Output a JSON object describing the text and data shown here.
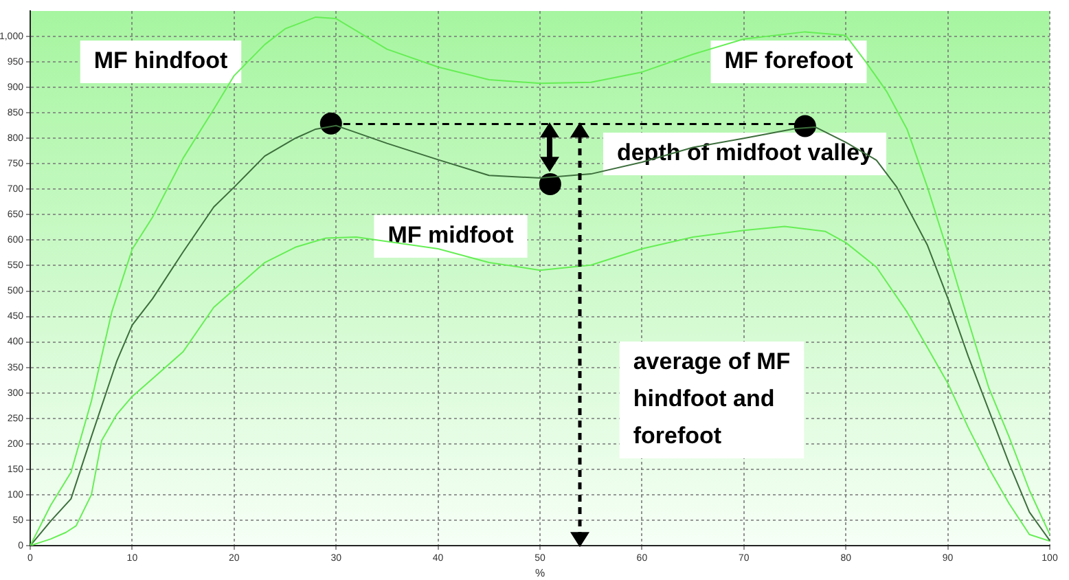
{
  "chart_data": {
    "type": "line",
    "xlabel": "%",
    "xlim": [
      0,
      100
    ],
    "ylim": [
      0,
      1050
    ],
    "xticks": [
      0,
      10,
      20,
      30,
      40,
      50,
      60,
      70,
      80,
      90,
      100
    ],
    "yticks": [
      0,
      50,
      100,
      150,
      200,
      250,
      300,
      350,
      400,
      450,
      500,
      550,
      600,
      650,
      700,
      750,
      800,
      850,
      900,
      950,
      {
        "value": 1000,
        "label": "1,000"
      }
    ],
    "grid": true,
    "legend": false,
    "marker": "none",
    "series": [
      {
        "color": "#66ee55",
        "x": [
          0,
          2,
          4,
          6,
          8,
          10,
          12,
          15,
          18,
          20,
          23,
          25,
          28,
          30,
          35,
          40,
          45,
          50,
          55,
          60,
          65,
          70,
          76,
          80,
          82,
          84,
          86,
          88,
          90,
          92,
          94,
          96,
          98,
          100
        ],
        "values": [
          0,
          79,
          144,
          284,
          459,
          582,
          645,
          761,
          857,
          923,
          984,
          1015,
          1038,
          1035,
          975,
          940,
          915,
          908,
          910,
          930,
          965,
          995,
          1009,
          1002,
          949,
          892,
          818,
          704,
          577,
          442,
          311,
          214,
          109,
          22
        ]
      },
      {
        "color": "#3c6e3c",
        "x": [
          0,
          2,
          4,
          6,
          8.5,
          10,
          12,
          15,
          18,
          20,
          23,
          26,
          28,
          30,
          35,
          40,
          45,
          50,
          55,
          60,
          65,
          70,
          75,
          77,
          80,
          83,
          85,
          88,
          90,
          92,
          94,
          96,
          98,
          100
        ],
        "values": [
          0,
          48,
          92,
          214,
          363,
          433,
          485,
          577,
          665,
          704,
          765,
          800,
          818,
          825,
          790,
          758,
          727,
          722,
          730,
          753,
          782,
          800,
          819,
          822,
          792,
          757,
          704,
          590,
          486,
          372,
          267,
          162,
          66,
          10
        ]
      },
      {
        "color": "#66ee55",
        "x": [
          0,
          2,
          3.5,
          4.5,
          6,
          7,
          8.5,
          10,
          12,
          15,
          18,
          20,
          23,
          26,
          29,
          32,
          40,
          45,
          50,
          55,
          60,
          65,
          70,
          74,
          78,
          80,
          83,
          86,
          88,
          90,
          92,
          94,
          96,
          98,
          100
        ],
        "values": [
          0,
          13,
          26,
          39,
          100,
          206,
          258,
          293,
          328,
          381,
          468,
          503,
          556,
          586,
          604,
          606,
          583,
          556,
          541,
          551,
          583,
          606,
          619,
          627,
          617,
          595,
          547,
          459,
          389,
          319,
          232,
          153,
          83,
          22,
          9
        ]
      },
      {
        "type": "line",
        "line_style": "dashed",
        "color": "#000000",
        "x": [
          29.5,
          76
        ],
        "values": [
          828,
          828
        ]
      },
      {
        "type": "scatter",
        "marker": "circle",
        "color": "#000000",
        "x": [
          29.5,
          51,
          76
        ],
        "values": [
          829,
          710,
          824
        ]
      }
    ],
    "annotations": [
      "MF hindfoot",
      "MF forefoot",
      "MF midfoot",
      "depth of midfoot valley",
      "average of MF hindfoot and forefoot"
    ]
  }
}
